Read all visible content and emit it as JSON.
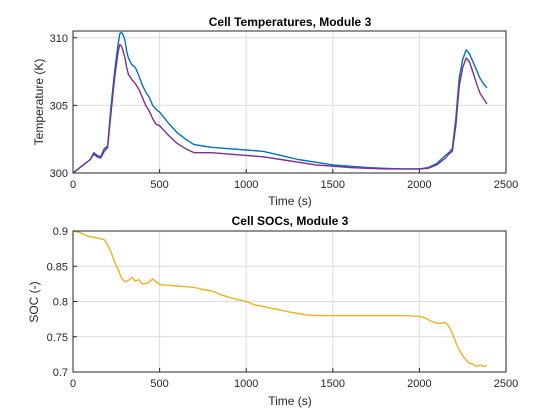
{
  "chart_data": [
    {
      "type": "line",
      "title": "Cell Temperatures, Module 3",
      "xlabel": "Time (s)",
      "ylabel": "Temperature (K)",
      "xlim": [
        0,
        2500
      ],
      "ylim": [
        300,
        310.5
      ],
      "xticks": [
        0,
        500,
        1000,
        1500,
        2000,
        2500
      ],
      "yticks": [
        300,
        305,
        310
      ],
      "grid": true,
      "series": [
        {
          "color": "#0072BD",
          "x": [
            0,
            50,
            100,
            120,
            140,
            160,
            180,
            200,
            220,
            240,
            260,
            270,
            280,
            290,
            300,
            310,
            320,
            340,
            360,
            380,
            400,
            420,
            440,
            460,
            480,
            500,
            550,
            600,
            650,
            700,
            750,
            800,
            900,
            1000,
            1100,
            1200,
            1300,
            1400,
            1500,
            1600,
            1700,
            1800,
            1900,
            2000,
            2050,
            2100,
            2150,
            2170,
            2190,
            2210,
            2230,
            2250,
            2270,
            2290,
            2310,
            2330,
            2350,
            2370,
            2390
          ],
          "values": [
            300.0,
            300.5,
            301.0,
            301.5,
            301.3,
            301.2,
            301.8,
            302.0,
            305.0,
            307.5,
            309.5,
            310.3,
            310.4,
            310.2,
            309.8,
            309.0,
            308.5,
            308.0,
            307.8,
            307.2,
            306.5,
            306.0,
            305.6,
            305.0,
            304.7,
            304.5,
            303.7,
            303.0,
            302.5,
            302.1,
            302.0,
            301.9,
            301.8,
            301.7,
            301.6,
            301.3,
            301.0,
            300.8,
            300.6,
            300.5,
            300.4,
            300.35,
            300.3,
            300.3,
            300.4,
            300.7,
            301.3,
            301.5,
            301.8,
            304.0,
            307.0,
            308.4,
            309.1,
            308.8,
            308.2,
            307.6,
            307.0,
            306.6,
            306.3
          ]
        },
        {
          "color": "#7E2F8E",
          "x": [
            0,
            50,
            100,
            120,
            140,
            160,
            180,
            200,
            220,
            240,
            260,
            270,
            280,
            290,
            300,
            310,
            320,
            340,
            360,
            380,
            400,
            420,
            440,
            460,
            480,
            500,
            550,
            600,
            650,
            700,
            750,
            800,
            900,
            1000,
            1100,
            1200,
            1300,
            1400,
            1500,
            1600,
            1700,
            1800,
            1900,
            2000,
            2050,
            2100,
            2150,
            2170,
            2190,
            2210,
            2230,
            2250,
            2270,
            2290,
            2310,
            2330,
            2350,
            2370,
            2390
          ],
          "values": [
            300.0,
            300.5,
            301.0,
            301.4,
            301.2,
            301.1,
            301.6,
            301.9,
            304.5,
            307.0,
            308.9,
            309.5,
            309.4,
            309.0,
            308.5,
            307.8,
            307.3,
            306.9,
            306.6,
            306.2,
            305.6,
            305.0,
            304.6,
            304.0,
            303.6,
            303.5,
            302.8,
            302.2,
            301.8,
            301.5,
            301.5,
            301.5,
            301.4,
            301.3,
            301.2,
            301.0,
            300.8,
            300.6,
            300.5,
            300.4,
            300.35,
            300.3,
            300.3,
            300.3,
            300.35,
            300.6,
            301.1,
            301.4,
            301.6,
            303.5,
            306.4,
            307.8,
            308.5,
            308.2,
            307.4,
            306.6,
            305.9,
            305.5,
            305.1
          ]
        }
      ]
    },
    {
      "type": "line",
      "title": "Cell SOCs, Module 3",
      "xlabel": "Time (s)",
      "ylabel": "SOC (-)",
      "xlim": [
        0,
        2500
      ],
      "ylim": [
        0.7,
        0.9
      ],
      "xticks": [
        0,
        500,
        1000,
        1500,
        2000,
        2500
      ],
      "yticks": [
        0.7,
        0.75,
        0.8,
        0.85,
        0.9
      ],
      "grid": true,
      "series": [
        {
          "color": "#EDB120",
          "x": [
            0,
            40,
            80,
            120,
            160,
            180,
            200,
            220,
            240,
            260,
            280,
            300,
            320,
            340,
            360,
            380,
            400,
            430,
            460,
            500,
            550,
            600,
            650,
            700,
            750,
            800,
            850,
            900,
            950,
            1000,
            1050,
            1100,
            1150,
            1200,
            1250,
            1300,
            1350,
            1400,
            1500,
            1600,
            1700,
            1800,
            1900,
            2000,
            2030,
            2060,
            2090,
            2120,
            2150,
            2170,
            2190,
            2210,
            2230,
            2250,
            2270,
            2290,
            2310,
            2330,
            2350,
            2370,
            2390
          ],
          "values": [
            0.9,
            0.898,
            0.893,
            0.891,
            0.889,
            0.888,
            0.88,
            0.87,
            0.856,
            0.846,
            0.833,
            0.828,
            0.83,
            0.834,
            0.829,
            0.831,
            0.825,
            0.826,
            0.832,
            0.824,
            0.823,
            0.822,
            0.821,
            0.82,
            0.817,
            0.815,
            0.81,
            0.806,
            0.803,
            0.8,
            0.795,
            0.793,
            0.79,
            0.788,
            0.785,
            0.783,
            0.781,
            0.78,
            0.78,
            0.78,
            0.78,
            0.78,
            0.78,
            0.779,
            0.777,
            0.773,
            0.77,
            0.769,
            0.77,
            0.765,
            0.755,
            0.742,
            0.731,
            0.723,
            0.717,
            0.712,
            0.711,
            0.708,
            0.71,
            0.708,
            0.709
          ]
        }
      ]
    }
  ]
}
